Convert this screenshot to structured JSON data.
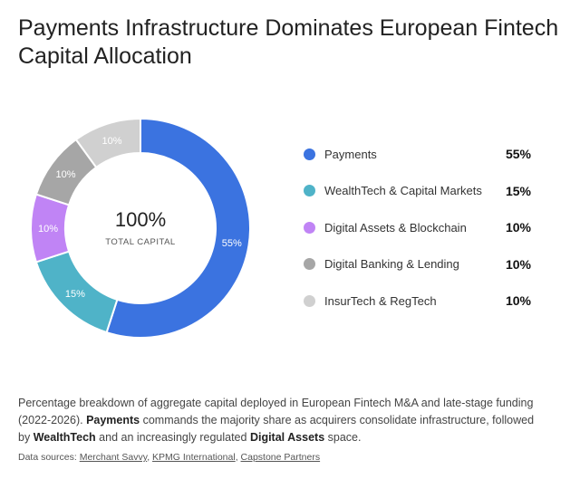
{
  "title": "Payments Infrastructure Dominates European Fintech Capital Allocation",
  "chart_data": {
    "type": "pie",
    "variant": "donut",
    "center_value": "100%",
    "center_label": "TOTAL CAPITAL",
    "legend_position": "right",
    "slices": [
      {
        "name": "Payments",
        "value": 55,
        "label": "55%",
        "color": "#3b73e0"
      },
      {
        "name": "WealthTech & Capital Markets",
        "value": 15,
        "label": "15%",
        "color": "#4fb3c8"
      },
      {
        "name": "Digital Assets & Blockchain",
        "value": 10,
        "label": "10%",
        "color": "#c084f5"
      },
      {
        "name": "Digital Banking & Lending",
        "value": 10,
        "label": "10%",
        "color": "#a6a6a6"
      },
      {
        "name": "InsurTech & RegTech",
        "value": 10,
        "label": "10%",
        "color": "#d0d0d0"
      }
    ]
  },
  "description": {
    "part1": "Percentage breakdown of aggregate capital deployed in European Fintech M&A and late-stage funding (2022-2026). ",
    "b1": "Payments",
    "part2": " commands the majority share as acquirers consolidate infrastructure, followed by ",
    "b2": "WealthTech",
    "part3": " and an increasingly regulated ",
    "b3": "Digital Assets",
    "part4": " space."
  },
  "sources": {
    "label": "Data sources: ",
    "links": [
      "Merchant Savvy",
      "KPMG International",
      "Capstone Partners"
    ]
  }
}
